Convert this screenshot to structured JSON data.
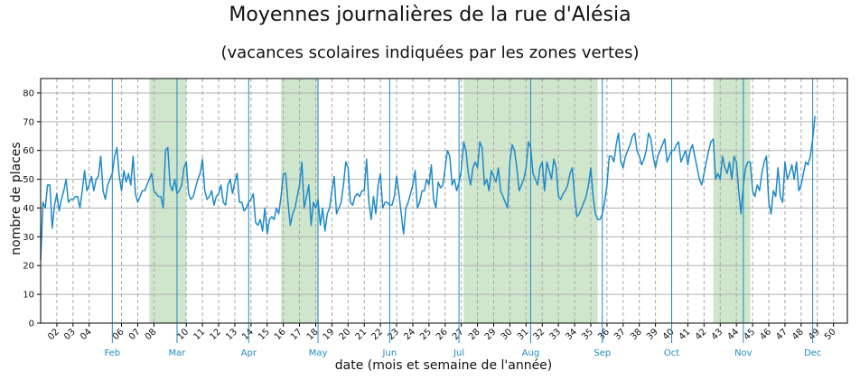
{
  "chart_data": {
    "type": "line",
    "title": "Moyennes journalières de la rue d'Alésia",
    "subtitle": "(vacances scolaires indiquées par les zones vertes)",
    "xlabel": "date (mois et semaine de l'année)",
    "ylabel": "nombre de places",
    "ylim": [
      0,
      85
    ],
    "yticks": [
      0,
      10,
      20,
      30,
      40,
      50,
      60,
      70,
      80
    ],
    "xlim_day": [
      1,
      350
    ],
    "grid": true,
    "week_ticks": [
      {
        "label": "02",
        "day": 8
      },
      {
        "label": "03",
        "day": 15
      },
      {
        "label": "04",
        "day": 22
      },
      {
        "label": "06",
        "day": 36
      },
      {
        "label": "07",
        "day": 43
      },
      {
        "label": "08",
        "day": 50
      },
      {
        "label": "10",
        "day": 64
      },
      {
        "label": "11",
        "day": 71
      },
      {
        "label": "12",
        "day": 78
      },
      {
        "label": "13",
        "day": 85
      },
      {
        "label": "14",
        "day": 92
      },
      {
        "label": "15",
        "day": 99
      },
      {
        "label": "16",
        "day": 106
      },
      {
        "label": "17",
        "day": 113
      },
      {
        "label": "18",
        "day": 120
      },
      {
        "label": "19",
        "day": 127
      },
      {
        "label": "20",
        "day": 134
      },
      {
        "label": "21",
        "day": 141
      },
      {
        "label": "22",
        "day": 148
      },
      {
        "label": "23",
        "day": 155
      },
      {
        "label": "24",
        "day": 162
      },
      {
        "label": "25",
        "day": 169
      },
      {
        "label": "26",
        "day": 176
      },
      {
        "label": "27",
        "day": 183
      },
      {
        "label": "28",
        "day": 190
      },
      {
        "label": "29",
        "day": 197
      },
      {
        "label": "30",
        "day": 204
      },
      {
        "label": "31",
        "day": 211
      },
      {
        "label": "32",
        "day": 218
      },
      {
        "label": "33",
        "day": 225
      },
      {
        "label": "34",
        "day": 232
      },
      {
        "label": "35",
        "day": 239
      },
      {
        "label": "36",
        "day": 246
      },
      {
        "label": "37",
        "day": 253
      },
      {
        "label": "38",
        "day": 260
      },
      {
        "label": "39",
        "day": 267
      },
      {
        "label": "40",
        "day": 274
      },
      {
        "label": "41",
        "day": 281
      },
      {
        "label": "42",
        "day": 288
      },
      {
        "label": "43",
        "day": 295
      },
      {
        "label": "44",
        "day": 302
      },
      {
        "label": "45",
        "day": 309
      },
      {
        "label": "46",
        "day": 316
      },
      {
        "label": "47",
        "day": 323
      },
      {
        "label": "48",
        "day": 330
      },
      {
        "label": "49",
        "day": 337
      },
      {
        "label": "50",
        "day": 344
      }
    ],
    "month_ticks": [
      {
        "label": "Feb",
        "day": 32
      },
      {
        "label": "Mar",
        "day": 60
      },
      {
        "label": "Apr",
        "day": 91
      },
      {
        "label": "May",
        "day": 121
      },
      {
        "label": "Jun",
        "day": 152
      },
      {
        "label": "Jul",
        "day": 182
      },
      {
        "label": "Aug",
        "day": 213
      },
      {
        "label": "Sep",
        "day": 244
      },
      {
        "label": "Oct",
        "day": 274
      },
      {
        "label": "Nov",
        "day": 305
      },
      {
        "label": "Dec",
        "day": 335
      }
    ],
    "vacation_periods": [
      {
        "start_day": 48,
        "end_day": 64
      },
      {
        "start_day": 105,
        "end_day": 121
      },
      {
        "start_day": 184,
        "end_day": 242
      },
      {
        "start_day": 292,
        "end_day": 308
      }
    ],
    "series": [
      {
        "color": "#1f8ac8",
        "x_start_day": 1,
        "values": [
          22,
          42,
          40,
          48,
          48,
          33,
          41,
          45,
          39,
          43,
          46,
          50,
          42,
          43,
          43,
          44,
          44,
          40,
          46,
          53,
          46,
          48,
          51,
          46,
          50,
          51,
          58,
          46,
          43,
          48,
          50,
          52,
          58,
          61,
          51,
          46,
          53,
          49,
          52,
          48,
          58,
          45,
          42,
          44,
          46,
          46,
          48,
          50,
          52,
          46,
          45,
          44,
          44,
          40,
          60,
          61,
          48,
          46,
          50,
          45,
          46,
          48,
          54,
          56,
          45,
          43,
          44,
          47,
          50,
          52,
          57,
          46,
          43,
          44,
          46,
          41,
          44,
          45,
          48,
          42,
          41,
          48,
          50,
          45,
          49,
          52,
          42,
          42,
          39,
          40,
          42,
          43,
          45,
          35,
          34,
          36,
          32,
          40,
          31,
          36,
          37,
          36,
          40,
          38,
          44,
          52,
          52,
          42,
          34,
          38,
          40,
          44,
          48,
          56,
          40,
          44,
          48,
          34,
          42,
          40,
          43,
          34,
          40,
          32,
          38,
          40,
          46,
          51,
          38,
          40,
          42,
          48,
          56,
          54,
          42,
          41,
          44,
          45,
          44,
          46,
          46,
          57,
          42,
          36,
          44,
          38,
          48,
          52,
          40,
          42,
          42,
          41,
          41,
          44,
          51,
          45,
          38,
          31,
          40,
          42,
          45,
          48,
          53,
          40,
          42,
          46,
          46,
          50,
          48,
          55,
          43,
          40,
          49,
          47,
          48,
          54,
          60,
          58,
          48,
          50,
          46,
          49,
          53,
          63,
          60,
          52,
          48,
          54,
          56,
          54,
          63,
          61,
          48,
          50,
          46,
          53,
          51,
          49,
          54,
          46,
          44,
          42,
          40,
          56,
          62,
          60,
          54,
          46,
          48,
          50,
          54,
          63,
          61,
          52,
          50,
          48,
          54,
          56,
          46,
          56,
          53,
          50,
          57,
          54,
          44,
          43,
          45,
          46,
          48,
          52,
          54,
          44,
          37,
          38,
          40,
          42,
          44,
          48,
          54,
          44,
          38,
          36,
          36,
          38,
          42,
          48,
          58,
          58,
          56,
          62,
          66,
          56,
          54,
          58,
          60,
          62,
          65,
          66,
          60,
          58,
          55,
          57,
          60,
          66,
          64,
          58,
          54,
          58,
          60,
          62,
          64,
          56,
          58,
          60,
          60,
          62,
          63,
          56,
          58,
          60,
          55,
          60,
          62,
          58,
          54,
          50,
          48,
          52,
          56,
          60,
          63,
          64,
          50,
          52,
          50,
          58,
          54,
          52,
          56,
          50,
          58,
          56,
          46,
          38,
          48,
          54,
          56,
          56,
          46,
          44,
          48,
          46,
          52,
          56,
          58,
          42,
          38,
          46,
          44,
          54,
          44,
          42,
          56,
          50,
          52,
          55,
          50,
          56,
          46,
          48,
          52,
          56,
          55,
          58,
          64,
          72
        ]
      }
    ]
  }
}
